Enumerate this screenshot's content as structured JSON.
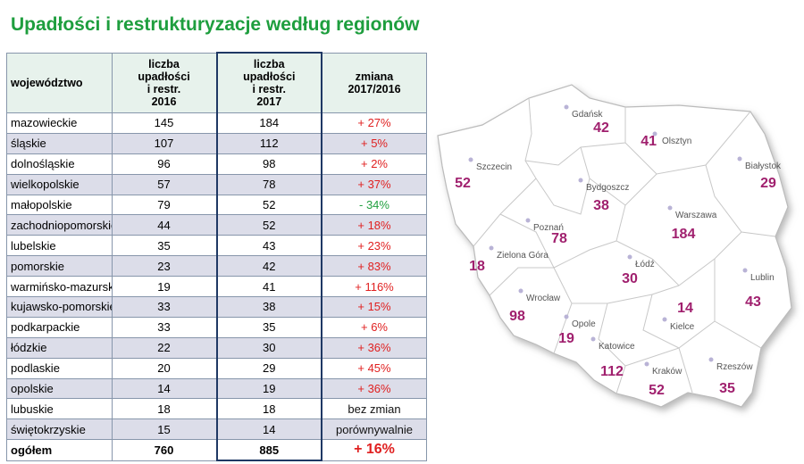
{
  "title": "Upadłości i restrukturyzacje według regionów",
  "table": {
    "header": [
      [
        "województwo"
      ],
      [
        "liczba",
        "upadłości",
        "i restr.",
        "2016"
      ],
      [
        "liczba",
        "upadłości",
        "i restr.",
        "2017"
      ],
      [
        "zmiana",
        "2017/2016"
      ]
    ],
    "rows": [
      [
        "mazowieckie",
        145,
        184,
        "+ 27%"
      ],
      [
        "śląskie",
        107,
        112,
        "+ 5%"
      ],
      [
        "dolnośląskie",
        96,
        98,
        "+ 2%"
      ],
      [
        "wielkopolskie",
        57,
        78,
        "+ 37%"
      ],
      [
        "małopolskie",
        79,
        52,
        "- 34%"
      ],
      [
        "zachodniopomorskie",
        44,
        52,
        "+ 18%"
      ],
      [
        "lubelskie",
        35,
        43,
        "+ 23%"
      ],
      [
        "pomorskie",
        23,
        42,
        "+ 83%"
      ],
      [
        "warmińsko-mazurskie",
        19,
        41,
        "+ 116%"
      ],
      [
        "kujawsko-pomorskie",
        33,
        38,
        "+ 15%"
      ],
      [
        "podkarpackie",
        33,
        35,
        "+ 6%"
      ],
      [
        "łódzkie",
        22,
        30,
        "+ 36%"
      ],
      [
        "podlaskie",
        20,
        29,
        "+ 45%"
      ],
      [
        "opolskie",
        14,
        19,
        "+ 36%"
      ],
      [
        "lubuskie",
        18,
        18,
        "bez zmian"
      ],
      [
        "świętokrzyskie",
        15,
        14,
        "porównywalnie"
      ]
    ],
    "total": [
      "ogółem",
      760,
      885,
      "+ 16%"
    ]
  },
  "map": {
    "regions": [
      {
        "city": "Gdańsk",
        "value": 42
      },
      {
        "city": "Olsztyn",
        "value": 41
      },
      {
        "city": "Szczecin",
        "value": 52
      },
      {
        "city": "Białystok",
        "value": 29
      },
      {
        "city": "Bydgoszcz",
        "value": 38
      },
      {
        "city": "Warszawa",
        "value": 184
      },
      {
        "city": "Poznań",
        "value": 78
      },
      {
        "city": "Zielona Góra",
        "value": 18
      },
      {
        "city": "Łódź",
        "value": 30
      },
      {
        "city": "Lublin",
        "value": 43
      },
      {
        "city": "Wrocław",
        "value": 98
      },
      {
        "city": "Opole",
        "value": 19
      },
      {
        "city": "Katowice",
        "value": 112
      },
      {
        "city": "Kielce",
        "value": 14
      },
      {
        "city": "Kraków",
        "value": 52
      },
      {
        "city": "Rzeszów",
        "value": 35
      }
    ]
  }
}
